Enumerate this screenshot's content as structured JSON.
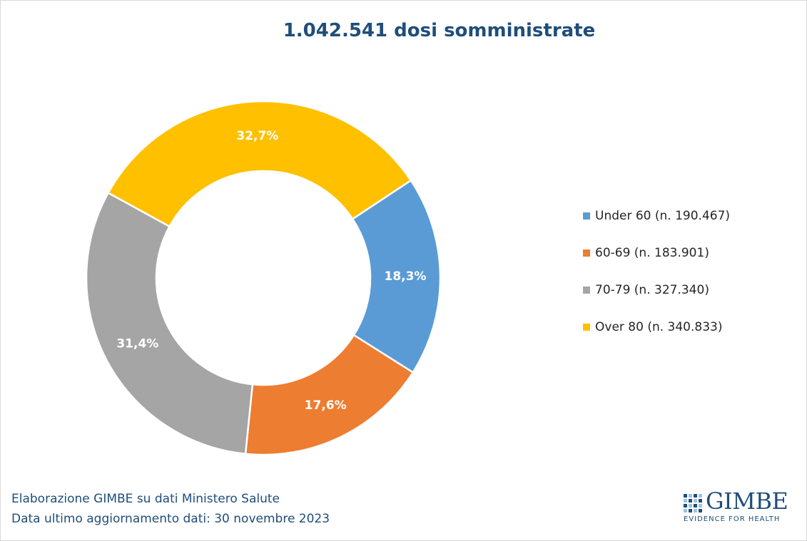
{
  "chart_data": {
    "type": "pie",
    "variant": "donut",
    "title": "1.042.541 dosi somministrate",
    "series": [
      {
        "name": "",
        "categories": [
          "Under 60",
          "60-69",
          "70-79",
          "Over 80"
        ],
        "values": [
          190467,
          183901,
          327340,
          340833
        ],
        "data_labels": [
          "18,3%",
          "17,6%",
          "31,4%",
          "32,7%"
        ],
        "colors": [
          "#5b9bd5",
          "#ed7d31",
          "#a5a5a5",
          "#ffc000"
        ]
      }
    ],
    "legend": {
      "placement": "right",
      "entries": [
        "Under 60 (n. 190.467)",
        "60-69 (n. 183.901)",
        "70-79 (n. 327.340)",
        "Over 80 (n. 340.833)"
      ]
    },
    "label_color": "#ffffff"
  },
  "footer": {
    "line1": "Elaborazione GIMBE su dati Ministero Salute",
    "line2": "Data ultimo aggiornamento dati: 30 novembre 2023"
  },
  "logo": {
    "name": "GIMBE",
    "tagline": "EVIDENCE FOR HEALTH",
    "color": "#1f4e79"
  },
  "title_color": "#1f4e79"
}
